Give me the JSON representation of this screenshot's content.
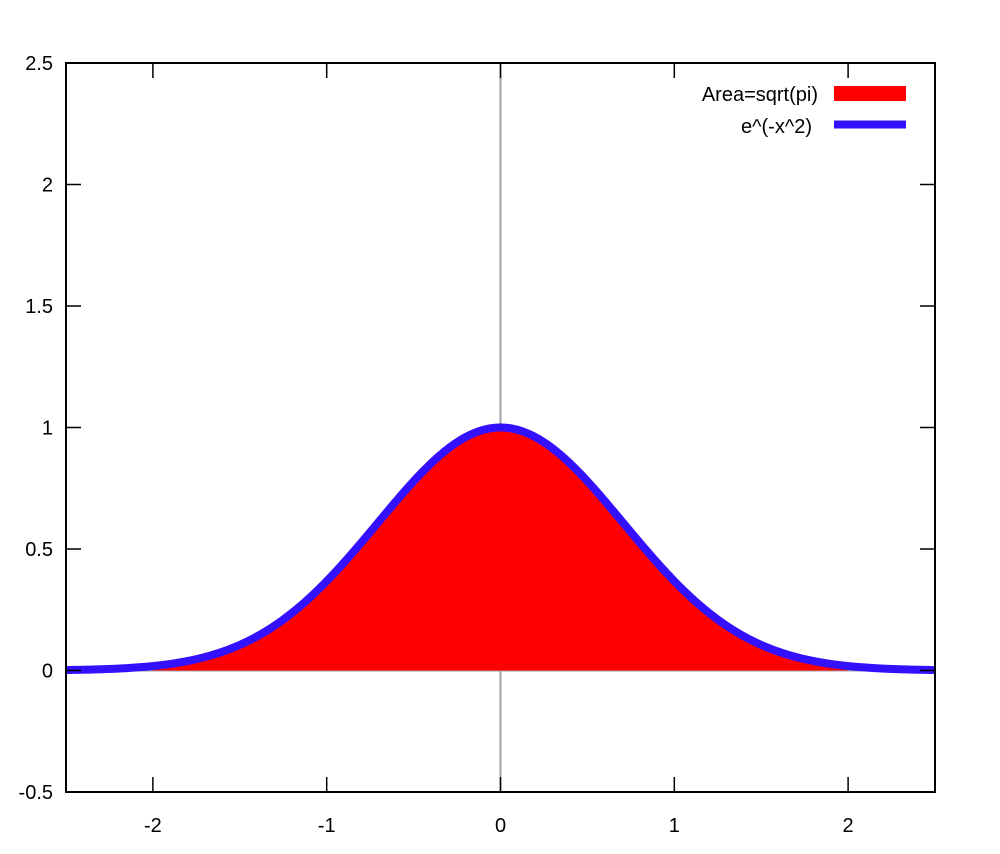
{
  "chart_data": {
    "type": "area",
    "title": "",
    "xlabel": "",
    "ylabel": "",
    "xlim": [
      -2.5,
      2.5
    ],
    "ylim": [
      -0.5,
      2.5
    ],
    "xticks": [
      -2,
      -1,
      0,
      1,
      2
    ],
    "xtick_labels": [
      "-2",
      "-1",
      "0",
      "1",
      "2"
    ],
    "yticks": [
      -0.5,
      0,
      0.5,
      1,
      1.5,
      2,
      2.5
    ],
    "ytick_labels": [
      "-0.5",
      "0",
      "0.5",
      "1",
      "1.5",
      "2",
      "2.5"
    ],
    "grid": false,
    "zero_axes": true,
    "legend_position": "top-right",
    "series": [
      {
        "name": "Area=sqrt(pi)",
        "kind": "filled-area",
        "color": "#ff0000",
        "function": "exp(-x^2)",
        "x_range": [
          -2,
          2
        ],
        "x": [
          -2,
          -1.5,
          -1,
          -0.5,
          0,
          0.5,
          1,
          1.5,
          2
        ],
        "values": [
          0.018,
          0.105,
          0.368,
          0.779,
          1.0,
          0.779,
          0.368,
          0.105,
          0.018
        ]
      },
      {
        "name": "e^(-x^2)",
        "kind": "line",
        "color": "#3311ff",
        "line_width": 8,
        "function": "exp(-x^2)",
        "x_range": [
          -2.5,
          2.5
        ],
        "x": [
          -2.5,
          -2,
          -1.5,
          -1,
          -0.5,
          0,
          0.5,
          1,
          1.5,
          2,
          2.5
        ],
        "values": [
          0.002,
          0.018,
          0.105,
          0.368,
          0.779,
          1.0,
          0.779,
          0.368,
          0.105,
          0.018,
          0.002
        ]
      }
    ]
  },
  "legend": {
    "items": [
      {
        "label": "Area=sqrt(pi)",
        "color": "#ff0000"
      },
      {
        "label": "e^(-x^2)",
        "color": "#3311ff"
      }
    ]
  }
}
